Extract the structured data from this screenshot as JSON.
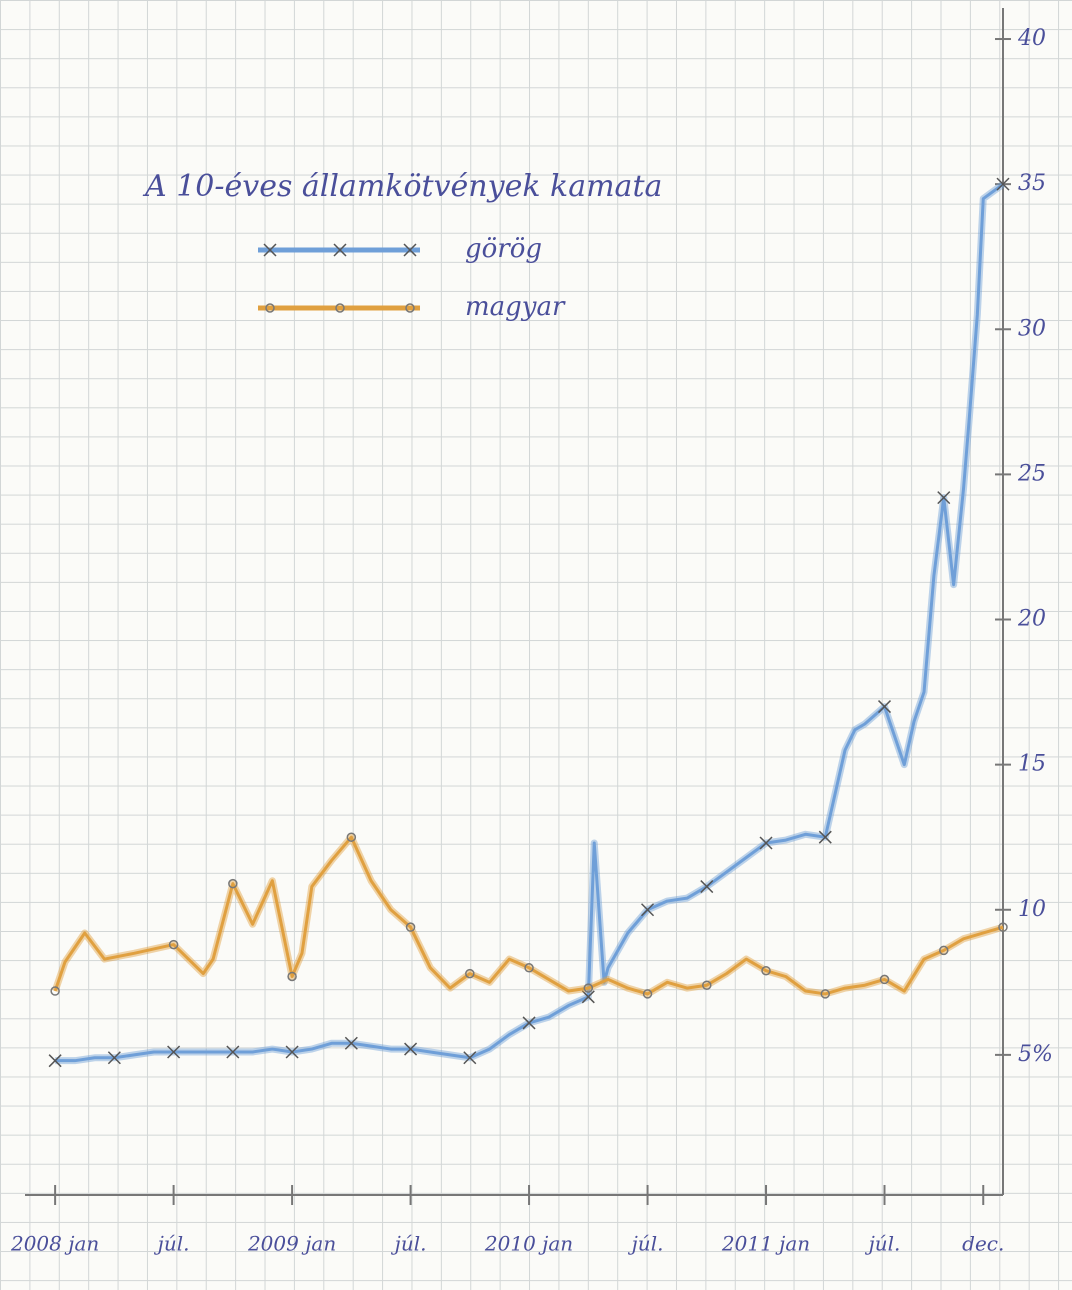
{
  "chart_data": {
    "type": "line",
    "title": "A 10-éves államkötvények kamata",
    "xlim": [
      -1.5,
      48
    ],
    "xticks": [
      {
        "value": 0,
        "label": "2008 jan"
      },
      {
        "value": 6,
        "label": "júl."
      },
      {
        "value": 12,
        "label": "2009 jan"
      },
      {
        "value": 18,
        "label": "júl."
      },
      {
        "value": 24,
        "label": "2010 jan"
      },
      {
        "value": 30,
        "label": "júl."
      },
      {
        "value": 36,
        "label": "2011 jan"
      },
      {
        "value": 42,
        "label": "júl."
      },
      {
        "value": 47,
        "label": "dec."
      }
    ],
    "ylim": [
      0,
      41
    ],
    "yticks": [
      {
        "value": 5,
        "label": "5%"
      },
      10,
      15,
      20,
      25,
      30,
      35,
      40
    ],
    "series": [
      {
        "name": "görög",
        "color": "#6f9fd8",
        "marker": "x",
        "x": [
          0,
          1,
          2,
          3,
          4,
          5,
          6,
          7,
          8,
          9,
          10,
          11,
          12,
          13,
          14,
          15,
          16,
          17,
          18,
          19,
          20,
          21,
          22,
          23,
          24,
          25,
          26,
          27,
          27.3,
          27.8,
          28,
          29,
          30,
          31,
          32,
          33,
          34,
          35,
          36,
          37,
          38,
          39,
          40,
          40.5,
          41,
          42,
          42.5,
          43,
          43.5,
          44,
          44.5,
          45,
          45.5,
          46,
          46.3,
          46.7,
          47,
          48
        ],
        "values": [
          4.8,
          4.8,
          4.9,
          4.9,
          5.0,
          5.1,
          5.1,
          5.1,
          5.1,
          5.1,
          5.1,
          5.2,
          5.1,
          5.2,
          5.4,
          5.4,
          5.3,
          5.2,
          5.2,
          5.1,
          5.0,
          4.9,
          5.2,
          5.7,
          6.1,
          6.3,
          6.7,
          7.0,
          12.3,
          7.5,
          8.0,
          9.2,
          10.0,
          10.3,
          10.4,
          10.8,
          11.3,
          11.8,
          12.3,
          12.4,
          12.6,
          12.5,
          15.5,
          16.2,
          16.4,
          17.0,
          16.0,
          15.0,
          16.5,
          17.5,
          21.5,
          24.2,
          21.2,
          24.5,
          27.0,
          30.5,
          34.5,
          35.0
        ]
      },
      {
        "name": "magyar",
        "color": "#e0a040",
        "marker": "o",
        "x": [
          0,
          0.5,
          1.5,
          2.5,
          4,
          6,
          7.5,
          8,
          9,
          10,
          11,
          12,
          12.5,
          13,
          14,
          15,
          16,
          17,
          18,
          19,
          20,
          21,
          22,
          23,
          24,
          25,
          26,
          27,
          28,
          29,
          30,
          31,
          32,
          33,
          34,
          35,
          36,
          37,
          38,
          39,
          40,
          41,
          42,
          43,
          44,
          45,
          46,
          47,
          48
        ],
        "values": [
          7.2,
          8.2,
          9.2,
          8.3,
          8.5,
          8.8,
          7.8,
          8.3,
          10.9,
          9.5,
          11.0,
          7.7,
          8.5,
          10.8,
          11.7,
          12.5,
          11.0,
          10.0,
          9.4,
          8.0,
          7.3,
          7.8,
          7.5,
          8.3,
          8.0,
          7.6,
          7.2,
          7.3,
          7.6,
          7.3,
          7.1,
          7.5,
          7.3,
          7.4,
          7.8,
          8.3,
          7.9,
          7.7,
          7.2,
          7.1,
          7.3,
          7.4,
          7.6,
          7.2,
          8.3,
          8.6,
          9.0,
          9.2,
          9.4
        ]
      }
    ]
  }
}
